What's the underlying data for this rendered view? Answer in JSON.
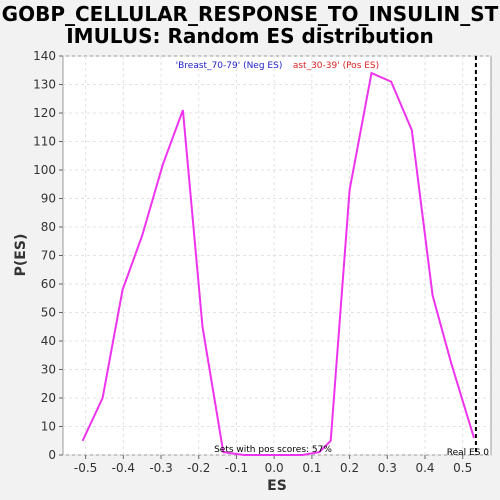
{
  "chart_data": {
    "type": "line",
    "title_line1": "GOBP_CELLULAR_RESPONSE_TO_INSULIN_ST",
    "title_line2": "IMULUS: Random ES distribution",
    "xlabel": "ES",
    "ylabel": "P(ES)",
    "xlim": [
      -0.56,
      0.575
    ],
    "ylim": [
      0,
      140
    ],
    "xticks": [
      -0.5,
      -0.4,
      -0.3,
      -0.2,
      -0.1,
      0.0,
      0.1,
      0.2,
      0.3,
      0.4,
      0.5
    ],
    "xtick_labels": [
      "-0.5",
      "-0.4",
      "-0.3",
      "-0.2",
      "-0.1",
      "0.0",
      "0.1",
      "0.2",
      "0.3",
      "0.4",
      "0.5"
    ],
    "yticks": [
      0,
      10,
      20,
      30,
      40,
      50,
      60,
      70,
      80,
      90,
      100,
      110,
      120,
      130,
      140
    ],
    "ytick_labels": [
      "0",
      "10",
      "20",
      "30",
      "40",
      "50",
      "60",
      "70",
      "80",
      "90",
      "100",
      "110",
      "120",
      "130",
      "140"
    ],
    "grid": true,
    "series": [
      {
        "color": "#ee33ee",
        "x": [
          -0.508,
          -0.455,
          -0.402,
          -0.35,
          -0.295,
          -0.242,
          -0.19,
          -0.135,
          -0.08,
          -0.03,
          0.025,
          0.075,
          0.12,
          0.15,
          0.2,
          0.258,
          0.31,
          0.365,
          0.42,
          0.47,
          0.53
        ],
        "y": [
          5,
          20,
          58,
          77,
          102,
          121,
          45,
          1,
          0,
          0,
          0,
          0,
          1,
          5,
          93,
          134,
          131,
          114,
          56,
          32,
          6
        ]
      }
    ],
    "real_es": {
      "x": 0.535,
      "label": "Real ES 0",
      "color": "#000000"
    },
    "legend_neg": {
      "text": "'Breast_70-79' (Neg ES)",
      "color": "#2222cc"
    },
    "legend_pos": {
      "text": "ast_30-39' (Pos ES)",
      "color": "#dd2222"
    },
    "annotation": "Sets with pos scores: 57%"
  }
}
